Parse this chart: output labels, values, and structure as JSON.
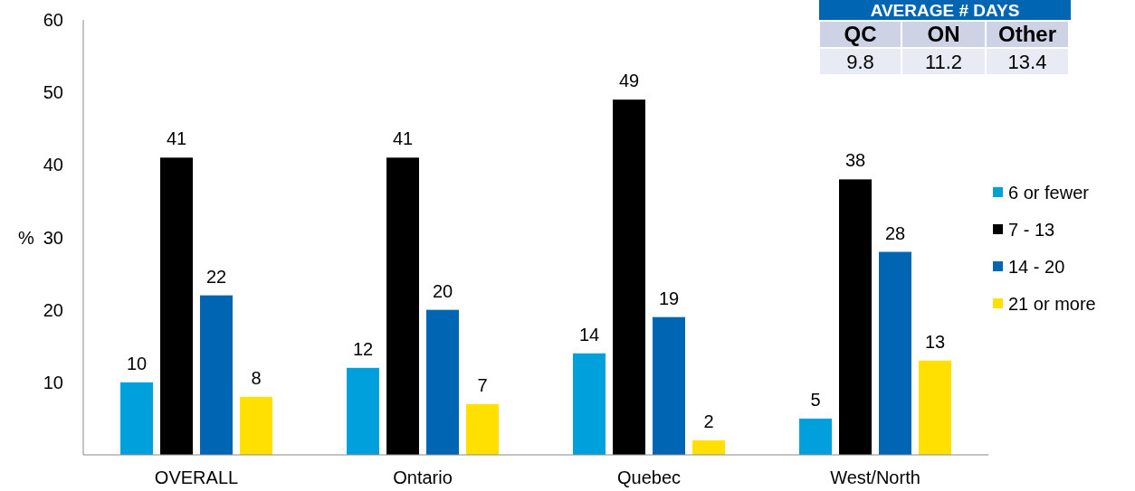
{
  "chart_data": {
    "type": "bar",
    "ylabel": "%",
    "categories": [
      "OVERALL",
      "Ontario",
      "Quebec",
      "West/North"
    ],
    "series": [
      {
        "name": "6 or fewer",
        "color": "#00a0dc",
        "values": [
          10,
          12,
          14,
          5
        ]
      },
      {
        "name": "7 - 13",
        "color": "#000000",
        "values": [
          41,
          41,
          49,
          38
        ]
      },
      {
        "name": "14 - 20",
        "color": "#0066b3",
        "values": [
          22,
          20,
          19,
          28
        ]
      },
      {
        "name": "21 or more",
        "color": "#ffe000",
        "values": [
          8,
          7,
          2,
          13
        ]
      }
    ],
    "ylim": [
      0,
      60
    ],
    "yticks": [
      10,
      20,
      30,
      40,
      50,
      60
    ],
    "data_labels": true,
    "legend": "right",
    "grid": false,
    "annotations": [
      "AVERAGE # DAYS",
      "QC",
      "ON",
      "Other",
      "9.8",
      "11.2",
      "13.4"
    ]
  }
}
